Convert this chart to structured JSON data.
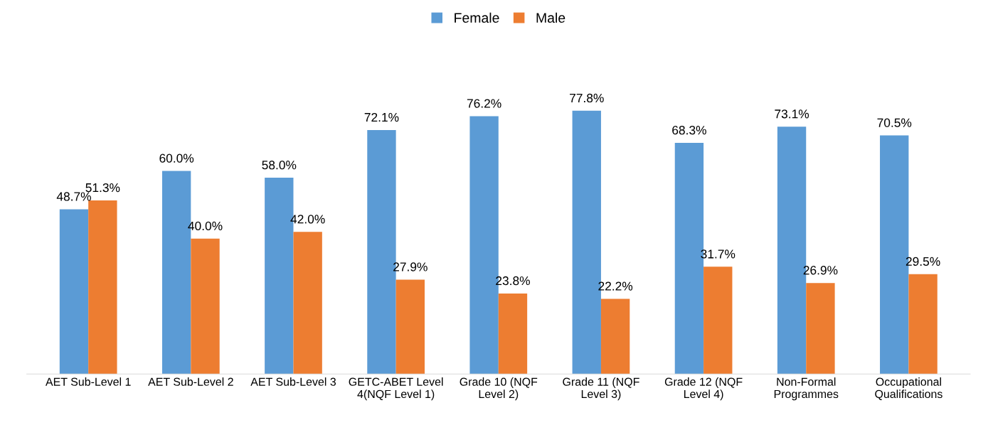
{
  "chart_data": {
    "type": "bar",
    "categories": [
      "AET Sub-Level 1",
      "AET Sub-Level 2",
      "AET Sub-Level 3",
      "GETC-ABET Level\n4(NQF Level 1)",
      "Grade 10 (NQF\nLevel 2)",
      "Grade 11 (NQF\nLevel 3)",
      "Grade 12 (NQF\nLevel 4)",
      "Non-Formal\nProgrammes",
      "Occupational\nQualifications"
    ],
    "series": [
      {
        "name": "Female",
        "color": "#5b9bd5",
        "values": [
          48.7,
          60.0,
          58.0,
          72.1,
          76.2,
          77.8,
          68.3,
          73.1,
          70.5
        ],
        "value_labels": [
          "48.7%",
          "60.0%",
          "58.0%",
          "72.1%",
          "76.2%",
          "77.8%",
          "68.3%",
          "73.1%",
          "70.5%"
        ]
      },
      {
        "name": "Male",
        "color": "#ed7d31",
        "values": [
          51.3,
          40.0,
          42.0,
          27.9,
          23.8,
          22.2,
          31.7,
          26.9,
          29.5
        ],
        "value_labels": [
          "51.3%",
          "40.0%",
          "42.0%",
          "27.9%",
          "23.8%",
          "22.2%",
          "31.7%",
          "26.9%",
          "29.5%"
        ]
      }
    ],
    "legend": "top",
    "grid": false
  }
}
